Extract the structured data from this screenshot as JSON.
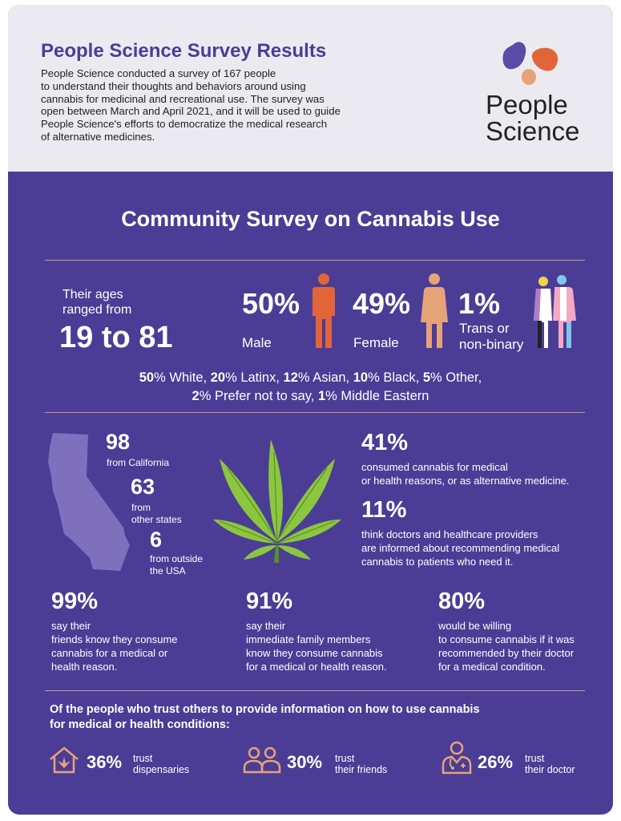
{
  "header": {
    "title": "People Science Survey Results",
    "intro_lines": [
      "People Science conducted a survey of 167 people",
      "to understand their thoughts and behaviors around using",
      "cannabis for medicinal and recreational use. The survey was",
      "open between March and April 2021, and it will be used to guide",
      "People Science's efforts to democratize the medical research",
      "of alternative medicines."
    ],
    "logo_lines": [
      "People",
      "Science"
    ]
  },
  "main": {
    "title": "Community Survey on Cannabis Use",
    "ages": {
      "label_lines": [
        "Their ages",
        "ranged from"
      ],
      "range": "19 to 81"
    },
    "gender": [
      {
        "pct": "50%",
        "label_lines": [
          "Male"
        ],
        "color": "#e2653a",
        "icon": "male-figure-icon"
      },
      {
        "pct": "49%",
        "label_lines": [
          "Female"
        ],
        "color": "#e6a377",
        "icon": "female-figure-icon"
      },
      {
        "pct": "1%",
        "label_lines": [
          "Trans or",
          "non-binary"
        ],
        "icon": "trans-figures-icon"
      }
    ],
    "ethnicity": {
      "line1": [
        {
          "num": "50",
          "text": "% White, "
        },
        {
          "num": "20",
          "text": "% Latinx, "
        },
        {
          "num": "12",
          "text": "% Asian, "
        },
        {
          "num": "10",
          "text": "% Black, "
        },
        {
          "num": "5",
          "text": "% Other,"
        }
      ],
      "line2": [
        {
          "num": "2",
          "text": "% Prefer not to say, "
        },
        {
          "num": "1",
          "text": "% Middle Eastern"
        }
      ]
    },
    "location": [
      {
        "num": "98",
        "label_lines": [
          "from California"
        ]
      },
      {
        "num": "63",
        "label_lines": [
          "from",
          "other states"
        ]
      },
      {
        "num": "6",
        "label_lines": [
          "from outside",
          "the USA"
        ]
      }
    ],
    "medical": [
      {
        "pct": "41%",
        "lines": [
          "consumed cannabis for medical",
          "or health reasons, or as alternative medicine."
        ]
      },
      {
        "pct": "11%",
        "lines": [
          "think doctors and healthcare providers",
          "are informed about recommending medical",
          "cannabis to patients who need it."
        ]
      }
    ],
    "stats": [
      {
        "pct": "99%",
        "lines": [
          "say their",
          "friends know they consume",
          "cannabis for a medical or",
          "health reason."
        ]
      },
      {
        "pct": "91%",
        "lines": [
          "say their",
          "immediate family members",
          "know they consume cannabis",
          "for a medical or health reason."
        ]
      },
      {
        "pct": "80%",
        "lines": [
          "would be willing",
          "to consume cannabis if it was",
          "recommended by their doctor",
          "for a medical condition."
        ]
      }
    ],
    "trust": {
      "question_lines": [
        "Of the people who trust others to provide information on how to use cannabis",
        "for medical or health conditions:"
      ],
      "items": [
        {
          "pct": "36%",
          "lines": [
            "trust",
            "dispensaries"
          ],
          "icon": "dispensary-house-icon"
        },
        {
          "pct": "30%",
          "lines": [
            "trust",
            "their friends"
          ],
          "icon": "friends-icon"
        },
        {
          "pct": "26%",
          "lines": [
            "trust",
            "their doctor"
          ],
          "icon": "doctor-icon"
        }
      ]
    }
  },
  "colors": {
    "purple": "#4b3d96",
    "light_bg": "#ebeaf0",
    "orange": "#e2653a",
    "peach": "#e6a377",
    "rule": "#c79a86",
    "map": "#7e70bd"
  }
}
